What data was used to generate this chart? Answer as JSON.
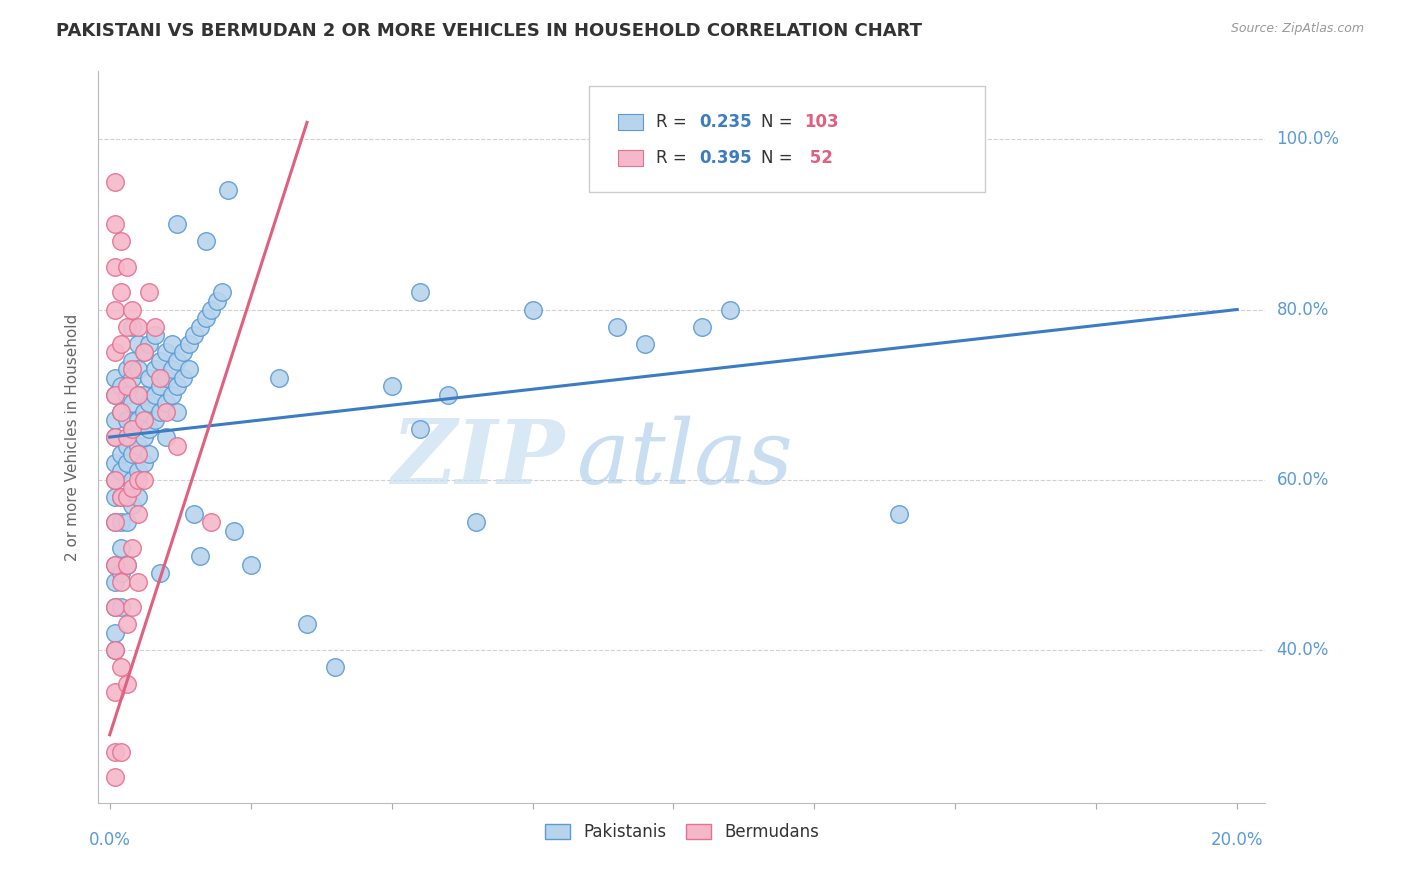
{
  "title": "PAKISTANI VS BERMUDAN 2 OR MORE VEHICLES IN HOUSEHOLD CORRELATION CHART",
  "source": "Source: ZipAtlas.com",
  "ylabel": "2 or more Vehicles in Household",
  "yticks": [
    "40.0%",
    "60.0%",
    "80.0%",
    "100.0%"
  ],
  "ytick_vals": [
    40.0,
    60.0,
    80.0,
    100.0
  ],
  "watermark_zip": "ZIP",
  "watermark_atlas": "atlas",
  "blue_color": "#b8d4ed",
  "pink_color": "#f5b8ca",
  "blue_edge_color": "#5b9bd5",
  "pink_edge_color": "#e87090",
  "blue_line_color": "#3b7cc4",
  "pink_line_color": "#e06080",
  "blue_line_x": [
    0.0,
    20.0
  ],
  "blue_line_y": [
    65.0,
    80.0
  ],
  "pink_line_x": [
    0.0,
    3.5
  ],
  "pink_line_y": [
    30.0,
    102.0
  ],
  "xlim": [
    -0.2,
    20.5
  ],
  "ylim": [
    22.0,
    108.0
  ],
  "xtick_positions": [
    0.0,
    2.5,
    5.0,
    7.5,
    10.0,
    12.5,
    15.0,
    17.5,
    20.0
  ],
  "background_color": "#ffffff",
  "grid_color": "#cccccc",
  "tick_label_color": "#5b9bd5",
  "pakistanis_scatter": [
    [
      0.1,
      62
    ],
    [
      0.1,
      65
    ],
    [
      0.1,
      60
    ],
    [
      0.1,
      58
    ],
    [
      0.1,
      70
    ],
    [
      0.1,
      55
    ],
    [
      0.1,
      50
    ],
    [
      0.1,
      48
    ],
    [
      0.1,
      45
    ],
    [
      0.1,
      42
    ],
    [
      0.1,
      40
    ],
    [
      0.1,
      67
    ],
    [
      0.1,
      72
    ],
    [
      0.2,
      63
    ],
    [
      0.2,
      61
    ],
    [
      0.2,
      58
    ],
    [
      0.2,
      55
    ],
    [
      0.2,
      52
    ],
    [
      0.2,
      49
    ],
    [
      0.2,
      68
    ],
    [
      0.2,
      71
    ],
    [
      0.2,
      45
    ],
    [
      0.3,
      70
    ],
    [
      0.3,
      67
    ],
    [
      0.3,
      64
    ],
    [
      0.3,
      62
    ],
    [
      0.3,
      58
    ],
    [
      0.3,
      55
    ],
    [
      0.3,
      73
    ],
    [
      0.3,
      50
    ],
    [
      0.4,
      72
    ],
    [
      0.4,
      69
    ],
    [
      0.4,
      66
    ],
    [
      0.4,
      63
    ],
    [
      0.4,
      60
    ],
    [
      0.4,
      57
    ],
    [
      0.4,
      74
    ],
    [
      0.4,
      78
    ],
    [
      0.5,
      70
    ],
    [
      0.5,
      67
    ],
    [
      0.5,
      64
    ],
    [
      0.5,
      61
    ],
    [
      0.5,
      58
    ],
    [
      0.5,
      73
    ],
    [
      0.5,
      76
    ],
    [
      0.6,
      68
    ],
    [
      0.6,
      65
    ],
    [
      0.6,
      62
    ],
    [
      0.6,
      70
    ],
    [
      0.6,
      75
    ],
    [
      0.7,
      69
    ],
    [
      0.7,
      66
    ],
    [
      0.7,
      72
    ],
    [
      0.7,
      76
    ],
    [
      0.7,
      63
    ],
    [
      0.8,
      70
    ],
    [
      0.8,
      67
    ],
    [
      0.8,
      73
    ],
    [
      0.8,
      77
    ],
    [
      0.9,
      71
    ],
    [
      0.9,
      68
    ],
    [
      0.9,
      74
    ],
    [
      0.9,
      49
    ],
    [
      1.0,
      72
    ],
    [
      1.0,
      69
    ],
    [
      1.0,
      75
    ],
    [
      1.0,
      65
    ],
    [
      1.1,
      73
    ],
    [
      1.1,
      70
    ],
    [
      1.1,
      76
    ],
    [
      1.2,
      74
    ],
    [
      1.2,
      71
    ],
    [
      1.2,
      68
    ],
    [
      1.2,
      90
    ],
    [
      1.3,
      75
    ],
    [
      1.3,
      72
    ],
    [
      1.4,
      76
    ],
    [
      1.4,
      73
    ],
    [
      1.5,
      77
    ],
    [
      1.5,
      56
    ],
    [
      1.6,
      78
    ],
    [
      1.6,
      51
    ],
    [
      1.7,
      79
    ],
    [
      1.7,
      88
    ],
    [
      1.8,
      80
    ],
    [
      1.9,
      81
    ],
    [
      2.0,
      82
    ],
    [
      2.1,
      94
    ],
    [
      2.2,
      54
    ],
    [
      2.5,
      50
    ],
    [
      3.0,
      72
    ],
    [
      3.5,
      43
    ],
    [
      4.0,
      38
    ],
    [
      5.0,
      71
    ],
    [
      5.5,
      82
    ],
    [
      5.5,
      66
    ],
    [
      6.0,
      70
    ],
    [
      6.5,
      55
    ],
    [
      7.5,
      80
    ],
    [
      9.0,
      78
    ],
    [
      9.5,
      76
    ],
    [
      10.5,
      78
    ],
    [
      11.0,
      80
    ],
    [
      14.0,
      56
    ]
  ],
  "bermudans_scatter": [
    [
      0.1,
      95
    ],
    [
      0.1,
      90
    ],
    [
      0.1,
      85
    ],
    [
      0.1,
      80
    ],
    [
      0.1,
      75
    ],
    [
      0.1,
      70
    ],
    [
      0.1,
      65
    ],
    [
      0.1,
      60
    ],
    [
      0.1,
      55
    ],
    [
      0.1,
      50
    ],
    [
      0.1,
      45
    ],
    [
      0.1,
      40
    ],
    [
      0.1,
      35
    ],
    [
      0.1,
      28
    ],
    [
      0.1,
      25
    ],
    [
      0.2,
      88
    ],
    [
      0.2,
      82
    ],
    [
      0.2,
      76
    ],
    [
      0.2,
      68
    ],
    [
      0.2,
      58
    ],
    [
      0.2,
      48
    ],
    [
      0.2,
      38
    ],
    [
      0.2,
      28
    ],
    [
      0.3,
      85
    ],
    [
      0.3,
      78
    ],
    [
      0.3,
      71
    ],
    [
      0.3,
      65
    ],
    [
      0.3,
      58
    ],
    [
      0.3,
      50
    ],
    [
      0.3,
      43
    ],
    [
      0.3,
      36
    ],
    [
      0.4,
      80
    ],
    [
      0.4,
      73
    ],
    [
      0.4,
      66
    ],
    [
      0.4,
      59
    ],
    [
      0.4,
      52
    ],
    [
      0.4,
      45
    ],
    [
      0.5,
      78
    ],
    [
      0.5,
      70
    ],
    [
      0.5,
      63
    ],
    [
      0.5,
      56
    ],
    [
      0.5,
      48
    ],
    [
      0.5,
      60
    ],
    [
      0.6,
      75
    ],
    [
      0.6,
      67
    ],
    [
      0.6,
      60
    ],
    [
      0.7,
      82
    ],
    [
      0.8,
      78
    ],
    [
      0.9,
      72
    ],
    [
      1.0,
      68
    ],
    [
      1.2,
      64
    ],
    [
      1.8,
      55
    ]
  ]
}
